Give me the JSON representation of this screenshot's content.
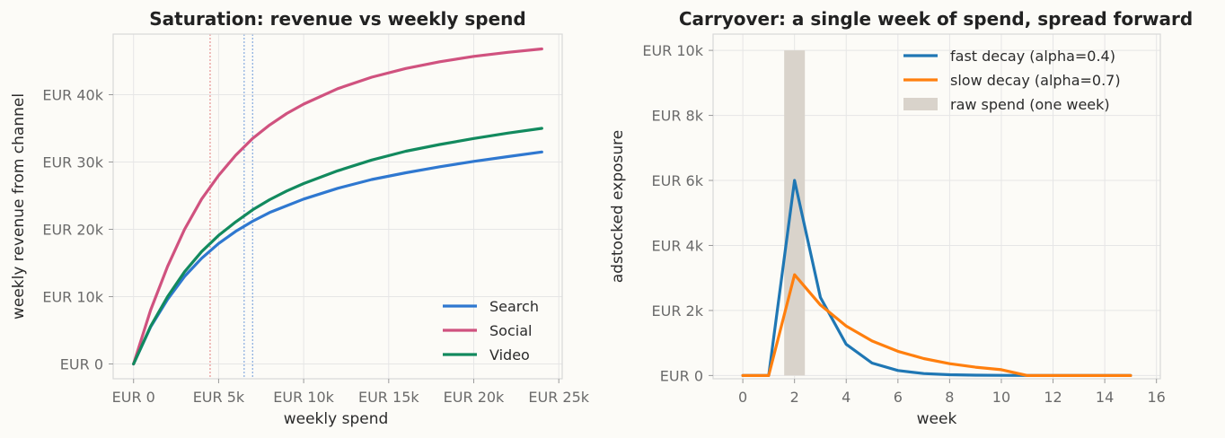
{
  "chart_data": [
    {
      "type": "line",
      "title": "Saturation: revenue vs weekly spend",
      "xlabel": "weekly spend",
      "ylabel": "weekly revenue from channel",
      "xlim": [
        -1200,
        25200
      ],
      "ylim": [
        -2200,
        49000
      ],
      "x_ticks": [
        0,
        5000,
        10000,
        15000,
        20000,
        25000
      ],
      "x_tick_labels": [
        "EUR 0",
        "EUR 5k",
        "EUR 10k",
        "EUR 15k",
        "EUR 20k",
        "EUR 25k"
      ],
      "y_ticks": [
        0,
        10000,
        20000,
        30000,
        40000
      ],
      "y_tick_labels": [
        "EUR 0",
        "EUR 10k",
        "EUR 20k",
        "EUR 30k",
        "EUR 40k"
      ],
      "grid": true,
      "legend_position": "bottom-right",
      "series": [
        {
          "name": "Search",
          "color": "#2f78d0",
          "x": [
            0,
            1000,
            2000,
            3000,
            4000,
            5000,
            6000,
            7000,
            8000,
            9000,
            10000,
            12000,
            14000,
            16000,
            18000,
            20000,
            22000,
            24000
          ],
          "values": [
            0,
            5500,
            9600,
            13000,
            15700,
            17900,
            19700,
            21200,
            22500,
            23500,
            24500,
            26100,
            27400,
            28400,
            29300,
            30100,
            30800,
            31500
          ]
        },
        {
          "name": "Social",
          "color": "#d0527f",
          "x": [
            0,
            1000,
            2000,
            3000,
            4000,
            5000,
            6000,
            7000,
            8000,
            9000,
            10000,
            12000,
            14000,
            16000,
            18000,
            20000,
            22000,
            24000
          ],
          "values": [
            0,
            8000,
            14500,
            20000,
            24500,
            28000,
            31000,
            33500,
            35500,
            37200,
            38600,
            40900,
            42600,
            43900,
            44900,
            45700,
            46300,
            46800
          ]
        },
        {
          "name": "Video",
          "color": "#128a5e",
          "x": [
            0,
            1000,
            2000,
            3000,
            4000,
            5000,
            6000,
            7000,
            8000,
            9000,
            10000,
            12000,
            14000,
            16000,
            18000,
            20000,
            22000,
            24000
          ],
          "values": [
            0,
            5600,
            10000,
            13700,
            16700,
            19100,
            21100,
            22900,
            24400,
            25700,
            26800,
            28700,
            30300,
            31600,
            32600,
            33500,
            34300,
            35000
          ]
        }
      ],
      "reference_lines": [
        {
          "x": 4500,
          "color": "#e89a9a"
        },
        {
          "x": 6500,
          "color": "#8fb0e0"
        },
        {
          "x": 7000,
          "color": "#8fb0e0"
        }
      ]
    },
    {
      "type": "line",
      "title": "Carryover: a single week of spend, spread forward",
      "xlabel": "week",
      "ylabel": "adstocked exposure",
      "xlim": [
        -1.15,
        16.15
      ],
      "ylim": [
        -100,
        10500
      ],
      "x_ticks": [
        0,
        2,
        4,
        6,
        8,
        10,
        12,
        14,
        16
      ],
      "x_tick_labels": [
        "0",
        "2",
        "4",
        "6",
        "8",
        "10",
        "12",
        "14",
        "16"
      ],
      "y_ticks": [
        0,
        2000,
        4000,
        6000,
        8000,
        10000
      ],
      "y_tick_labels": [
        "EUR 0",
        "EUR 2k",
        "EUR 4k",
        "EUR 6k",
        "EUR 8k",
        "EUR 10k"
      ],
      "grid": true,
      "legend_position": "top-right",
      "bar": {
        "name": "raw spend (one week)",
        "color": "#d9d3cb",
        "x": 2,
        "width": 0.8,
        "value": 10000
      },
      "series": [
        {
          "name": "fast decay (alpha=0.4)",
          "color": "#1f77b4",
          "x": [
            0,
            1,
            2,
            3,
            4,
            5,
            6,
            7,
            8,
            9,
            10,
            11,
            12,
            13,
            14,
            15
          ],
          "values": [
            0,
            0,
            6000,
            2400,
            960,
            384,
            154,
            61,
            25,
            10,
            4,
            2,
            1,
            0,
            0,
            0
          ]
        },
        {
          "name": "slow decay (alpha=0.7)",
          "color": "#ff7f0e",
          "x": [
            0,
            1,
            2,
            3,
            4,
            5,
            6,
            7,
            8,
            9,
            10,
            11,
            12,
            13,
            14,
            15
          ],
          "values": [
            0,
            0,
            3100,
            2170,
            1519,
            1063,
            744,
            521,
            365,
            255,
            179,
            0,
            0,
            0,
            0,
            0
          ]
        }
      ]
    }
  ]
}
